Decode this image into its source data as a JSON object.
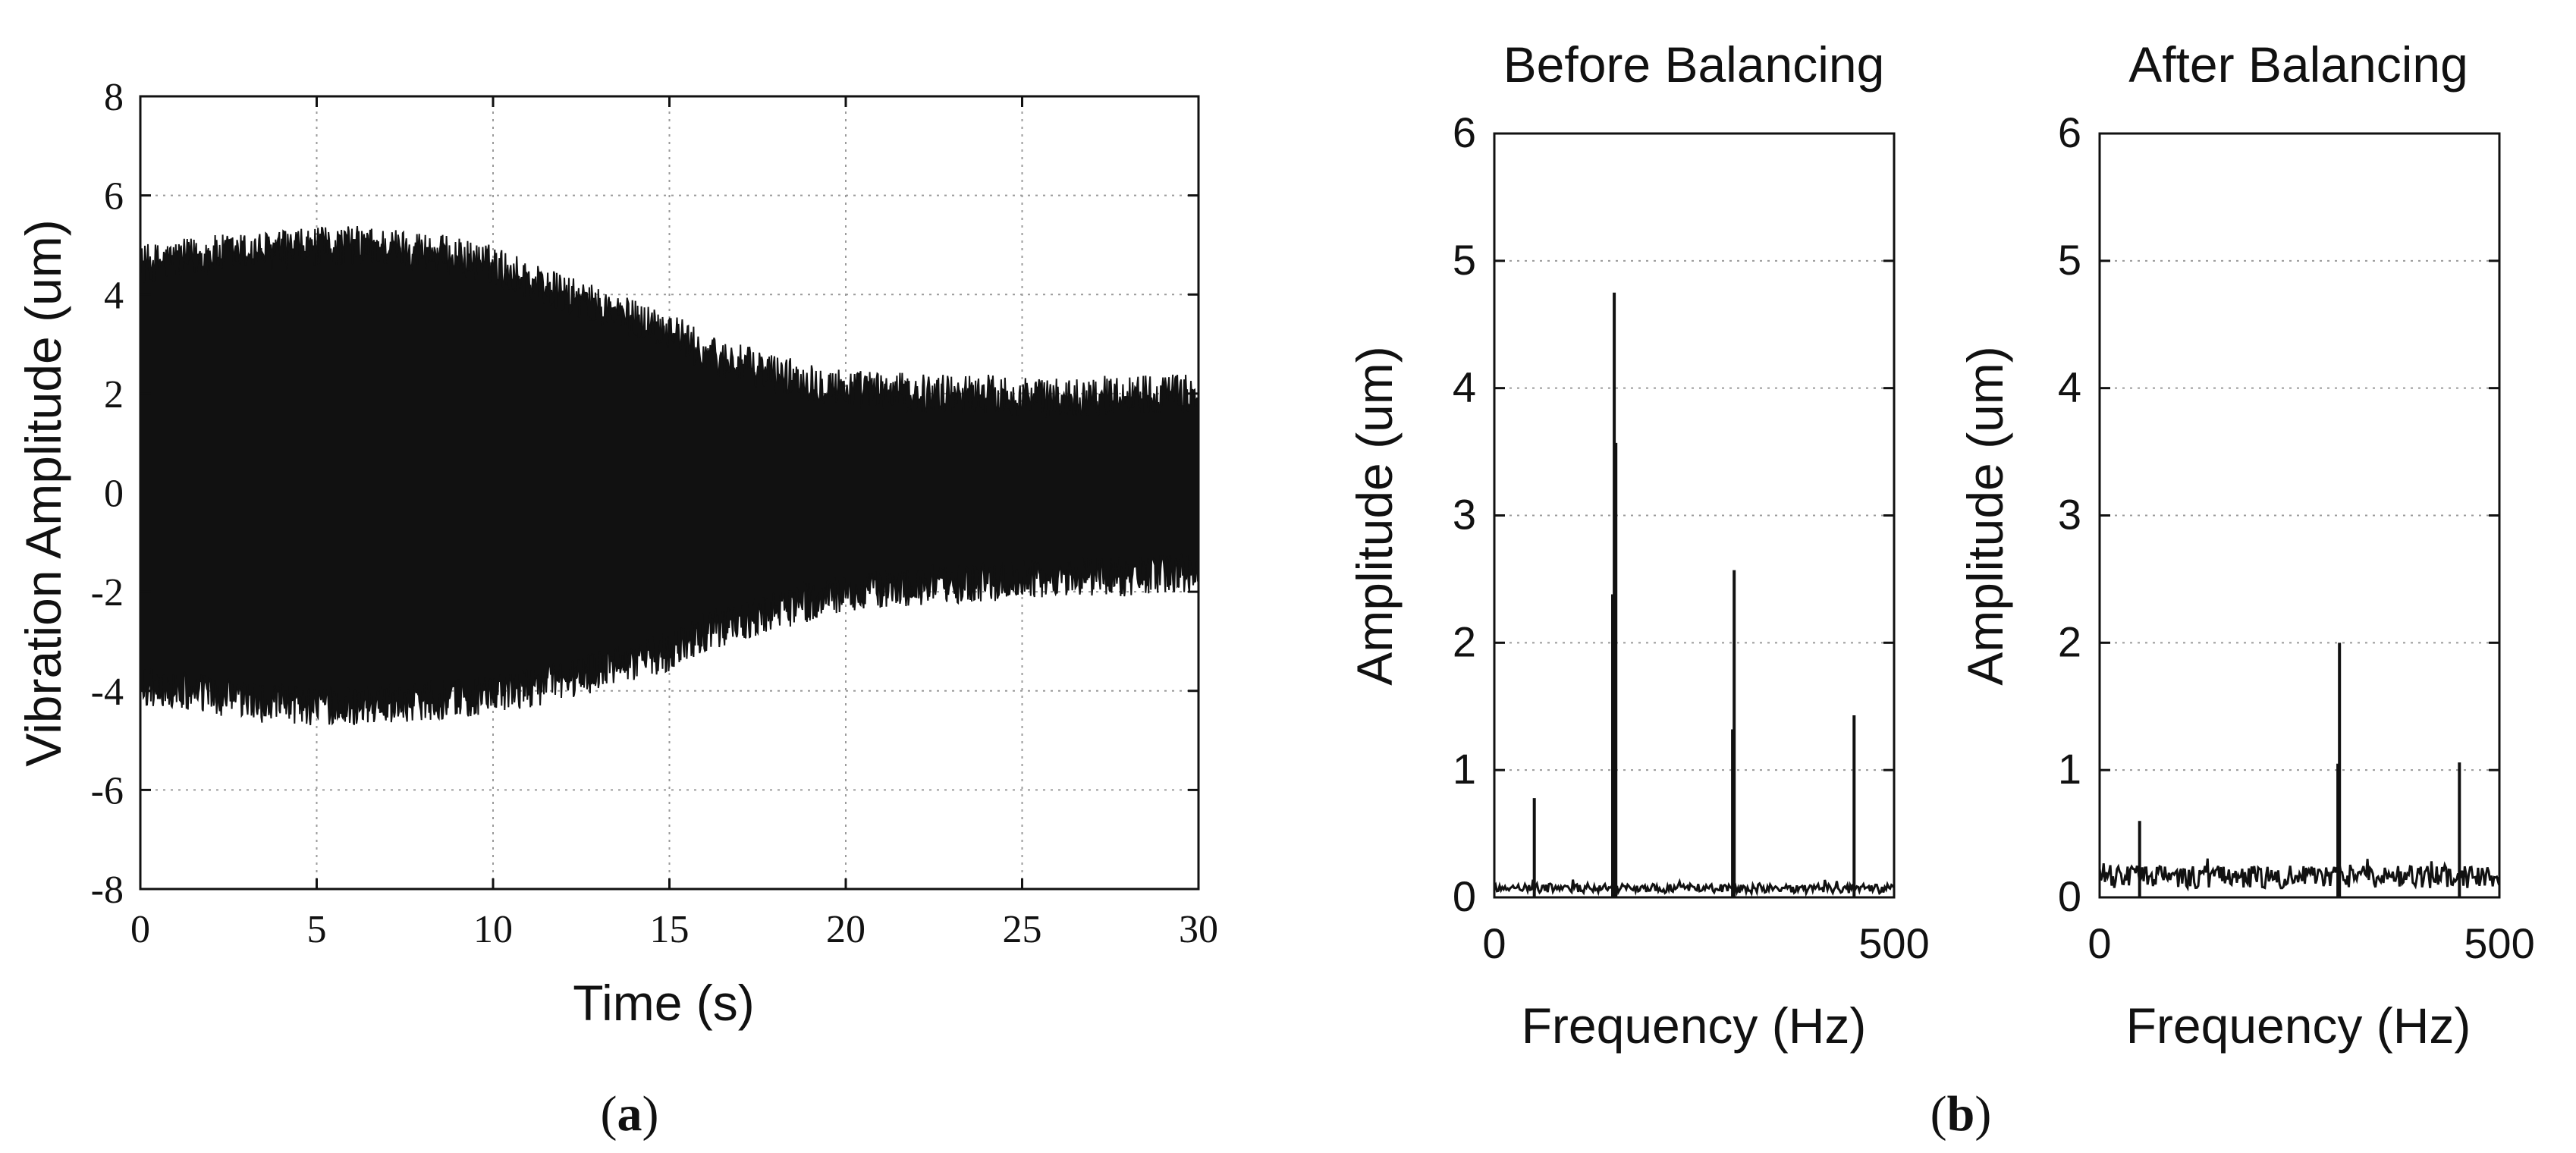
{
  "chart_data": [
    {
      "type": "line",
      "panel": "(a)",
      "title": "",
      "xlabel": "Time (s)",
      "ylabel": "Vibration Amplitude (um)",
      "xlim": [
        0,
        30
      ],
      "ylim": [
        -8,
        8
      ],
      "xticks": [
        0,
        5,
        10,
        15,
        20,
        25,
        30
      ],
      "yticks": [
        -8,
        -6,
        -4,
        -2,
        0,
        2,
        4,
        6,
        8
      ],
      "grid": true,
      "series": [
        {
          "name": "vibration envelope",
          "x": [
            0,
            2,
            4,
            6,
            8,
            10,
            12,
            14,
            15,
            16,
            18,
            20,
            22,
            24,
            26,
            28,
            30
          ],
          "upper": [
            4.6,
            4.8,
            4.9,
            5.0,
            4.9,
            4.6,
            4.0,
            3.5,
            3.3,
            2.8,
            2.4,
            2.1,
            2.0,
            2.0,
            1.9,
            2.0,
            2.0
          ],
          "lower": [
            -3.9,
            -4.1,
            -4.3,
            -4.3,
            -4.2,
            -4.1,
            -3.8,
            -3.4,
            -3.2,
            -2.8,
            -2.4,
            -2.0,
            -1.9,
            -1.8,
            -1.7,
            -1.7,
            -1.6
          ]
        }
      ],
      "caption": "a"
    },
    {
      "type": "line",
      "panel": "(b)",
      "title": "Before Balancing",
      "xlabel": "Frequency (Hz)",
      "ylabel": "Amplitude (um)",
      "xlim": [
        0,
        500
      ],
      "ylim": [
        0,
        6
      ],
      "xticks": [
        0,
        500
      ],
      "yticks": [
        0,
        1,
        2,
        3,
        4,
        5,
        6
      ],
      "grid": true,
      "noise_floor": 0.07,
      "peaks": [
        {
          "freq": 50,
          "amp": 0.78
        },
        {
          "freq": 148,
          "amp": 2.38
        },
        {
          "freq": 150,
          "amp": 4.75
        },
        {
          "freq": 152,
          "amp": 3.57
        },
        {
          "freq": 298,
          "amp": 1.32
        },
        {
          "freq": 300,
          "amp": 2.57
        },
        {
          "freq": 450,
          "amp": 1.43
        }
      ],
      "caption": "b"
    },
    {
      "type": "line",
      "panel": "(b)",
      "title": "After Balancing",
      "xlabel": "Frequency (Hz)",
      "ylabel": "Amplitude (um)",
      "xlim": [
        0,
        500
      ],
      "ylim": [
        0,
        6
      ],
      "xticks": [
        0,
        500
      ],
      "yticks": [
        0,
        1,
        2,
        3,
        4,
        5,
        6
      ],
      "grid": true,
      "noise_floor": 0.16,
      "peaks": [
        {
          "freq": 50,
          "amp": 0.6
        },
        {
          "freq": 298,
          "amp": 1.05
        },
        {
          "freq": 300,
          "amp": 2.0
        },
        {
          "freq": 450,
          "amp": 1.06
        }
      ]
    }
  ],
  "colors": {
    "trace": "#111111",
    "axis": "#111111",
    "grid": "#9a9a9a"
  }
}
